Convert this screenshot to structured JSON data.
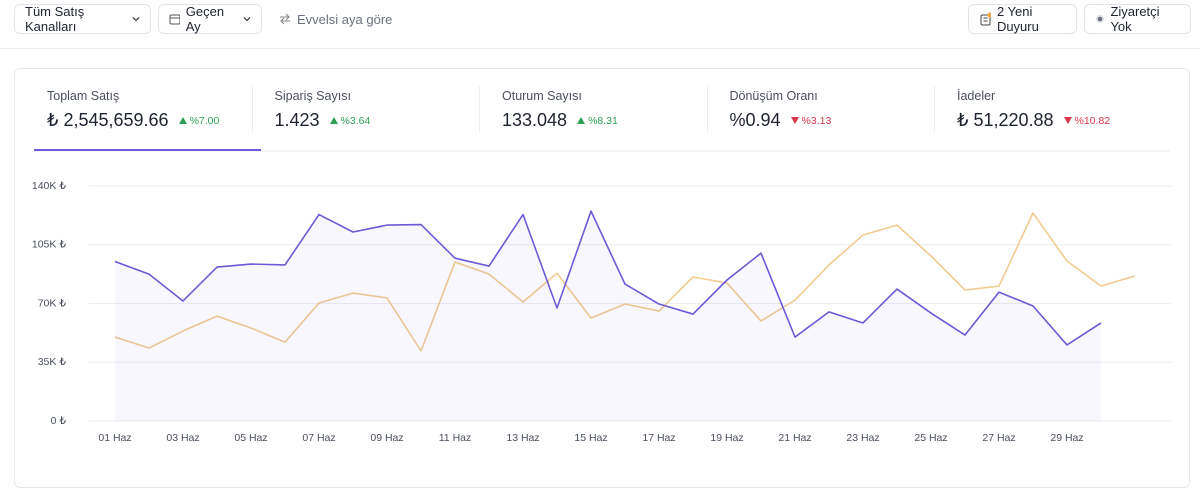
{
  "toolbar": {
    "channel": "Tüm Satış Kanalları",
    "period": "Geçen Ay",
    "compare": "Evvelsi aya göre",
    "announcements": "2 Yeni Duyuru",
    "visitors": "Ziyaretçi Yok"
  },
  "kpis": [
    {
      "label": "Toplam Satış",
      "value": "₺ 2,545,659.66",
      "change": "%7.00",
      "trend": "up"
    },
    {
      "label": "Sipariş Sayısı",
      "value": "1.423",
      "change": "%3.64",
      "trend": "up"
    },
    {
      "label": "Oturum Sayısı",
      "value": "133.048",
      "change": "%8.31",
      "trend": "up"
    },
    {
      "label": "Dönüşüm Oranı",
      "value": "%0.94",
      "change": "%3.13",
      "trend": "down"
    },
    {
      "label": "İadeler",
      "value": "₺ 51,220.88",
      "change": "%10.82",
      "trend": "down"
    }
  ],
  "chart_data": {
    "type": "line",
    "categories": [
      "01 Haz",
      null,
      "03 Haz",
      null,
      "05 Haz",
      null,
      "07 Haz",
      null,
      "09 Haz",
      null,
      "11 Haz",
      null,
      "13 Haz",
      null,
      "15 Haz",
      null,
      "17 Haz",
      null,
      "19 Haz",
      null,
      "21 Haz",
      null,
      "23 Haz",
      null,
      "25 Haz",
      null,
      "27 Haz",
      null,
      "29 Haz",
      null,
      null
    ],
    "series": [
      {
        "color": "#f0c27e",
        "values": [
          50000,
          43500,
          53600,
          62500,
          55400,
          47000,
          70300,
          76200,
          73300,
          41700,
          94700,
          87500,
          70900,
          88000,
          61300,
          69700,
          65500,
          85800,
          82200,
          59600,
          72000,
          93000,
          110800,
          116700,
          98300,
          78000,
          80400,
          123900,
          95300,
          80400,
          86400
        ]
      },
      {
        "color": "#6b5bd6",
        "values": [
          95000,
          87500,
          71500,
          91700,
          93500,
          93000,
          123000,
          112600,
          116700,
          117000,
          97000,
          92300,
          123000,
          67300,
          125000,
          81600,
          69700,
          63700,
          84000,
          100000,
          50000,
          65000,
          58400,
          78600,
          64300,
          51200,
          76800,
          68500,
          45300,
          58400,
          null
        ]
      }
    ],
    "ylim": [
      0,
      140000
    ],
    "yticks": [
      {
        "value": 0,
        "label": "0 ₺"
      },
      {
        "value": 35000,
        "label": "35K ₺"
      },
      {
        "value": 70000,
        "label": "70K ₺"
      },
      {
        "value": 105000,
        "label": "105K ₺"
      },
      {
        "value": 140000,
        "label": "140K ₺"
      }
    ],
    "grid": true
  }
}
